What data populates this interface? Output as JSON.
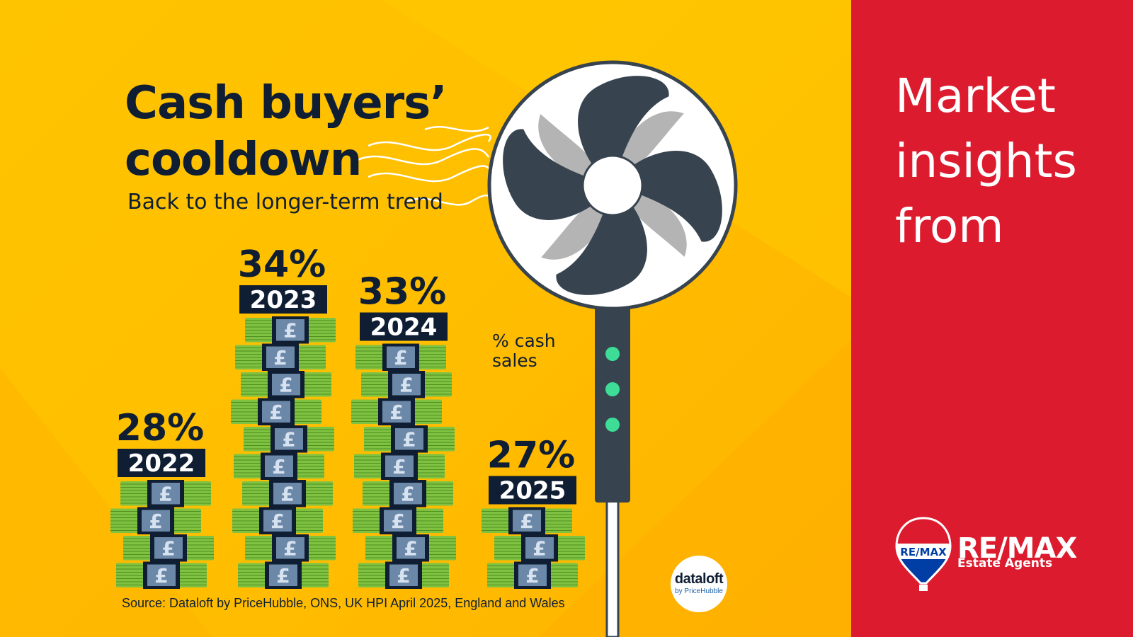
{
  "infographic": {
    "title_line1": "Cash buyers’",
    "title_line2": "cooldown",
    "subtitle": "Back to the longer-term trend",
    "source": "Source: Dataloft by PriceHubble, ONS, UK HPI April 2025, England and Wales",
    "unit_label_line1": "% cash",
    "unit_label_line2": "sales",
    "pound_symbol": "£"
  },
  "side_panel": {
    "line1": "Market",
    "line2": "insights",
    "line3": "from"
  },
  "badges": {
    "dataloft_name": "dataloft",
    "dataloft_by": "by PriceHubble",
    "balloon_text": "RE/MAX",
    "remax_word": "RE/MAX",
    "remax_sub": "Estate Agents"
  },
  "colors": {
    "background_yellow": "#ffc400",
    "panel_red": "#dc1c2e",
    "navy": "#0f1e33",
    "cash_green": "#7fc241",
    "note_blue": "#6b88a8",
    "fan_dots": "#3ddc97"
  },
  "chart_data": {
    "type": "bar",
    "categories": [
      "2022",
      "2023",
      "2024",
      "2025"
    ],
    "values": [
      28,
      34,
      33,
      27
    ],
    "value_labels": [
      "28%",
      "34%",
      "33%",
      "27%"
    ],
    "unit": "%",
    "legend": "% cash sales",
    "encoding": "stacks of banknotes"
  }
}
